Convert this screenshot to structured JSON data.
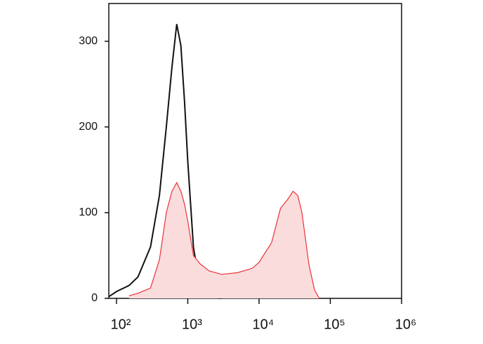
{
  "chart_data": {
    "type": "histogram-overlay",
    "x": [
      78,
      100,
      150,
      200,
      300,
      400,
      500,
      600,
      700,
      800,
      900,
      1000,
      1200,
      1500,
      2000,
      3000,
      5000,
      8000,
      10000,
      15000,
      20000,
      25000,
      30000,
      35000,
      40000,
      50000,
      60000,
      70000
    ],
    "series": [
      {
        "color": "#111111",
        "fill": "none",
        "values": [
          2,
          8,
          15,
          25,
          60,
          120,
          200,
          270,
          320,
          295,
          230,
          160,
          60,
          10,
          1,
          0,
          null,
          null,
          null,
          null,
          null,
          null,
          null,
          null,
          null,
          null,
          null,
          null
        ]
      },
      {
        "color": "#e8333a",
        "fill": "#fbdcdc",
        "values": [
          null,
          null,
          3,
          6,
          12,
          45,
          100,
          125,
          135,
          125,
          110,
          90,
          50,
          40,
          32,
          28,
          30,
          35,
          42,
          65,
          105,
          115,
          125,
          120,
          100,
          40,
          10,
          0
        ]
      }
    ],
    "xlog": true,
    "xlim": [
      78,
      1000000
    ],
    "ylim": [
      0,
      344
    ],
    "xticks": [
      {
        "value": 100,
        "label": "10²"
      },
      {
        "value": 1000,
        "label": "10³"
      },
      {
        "value": 10000,
        "label": "10⁴"
      },
      {
        "value": 100000,
        "label": "10⁵"
      },
      {
        "value": 1000000,
        "label": "10⁶"
      }
    ],
    "yticks": [
      0,
      100,
      200,
      300
    ]
  }
}
